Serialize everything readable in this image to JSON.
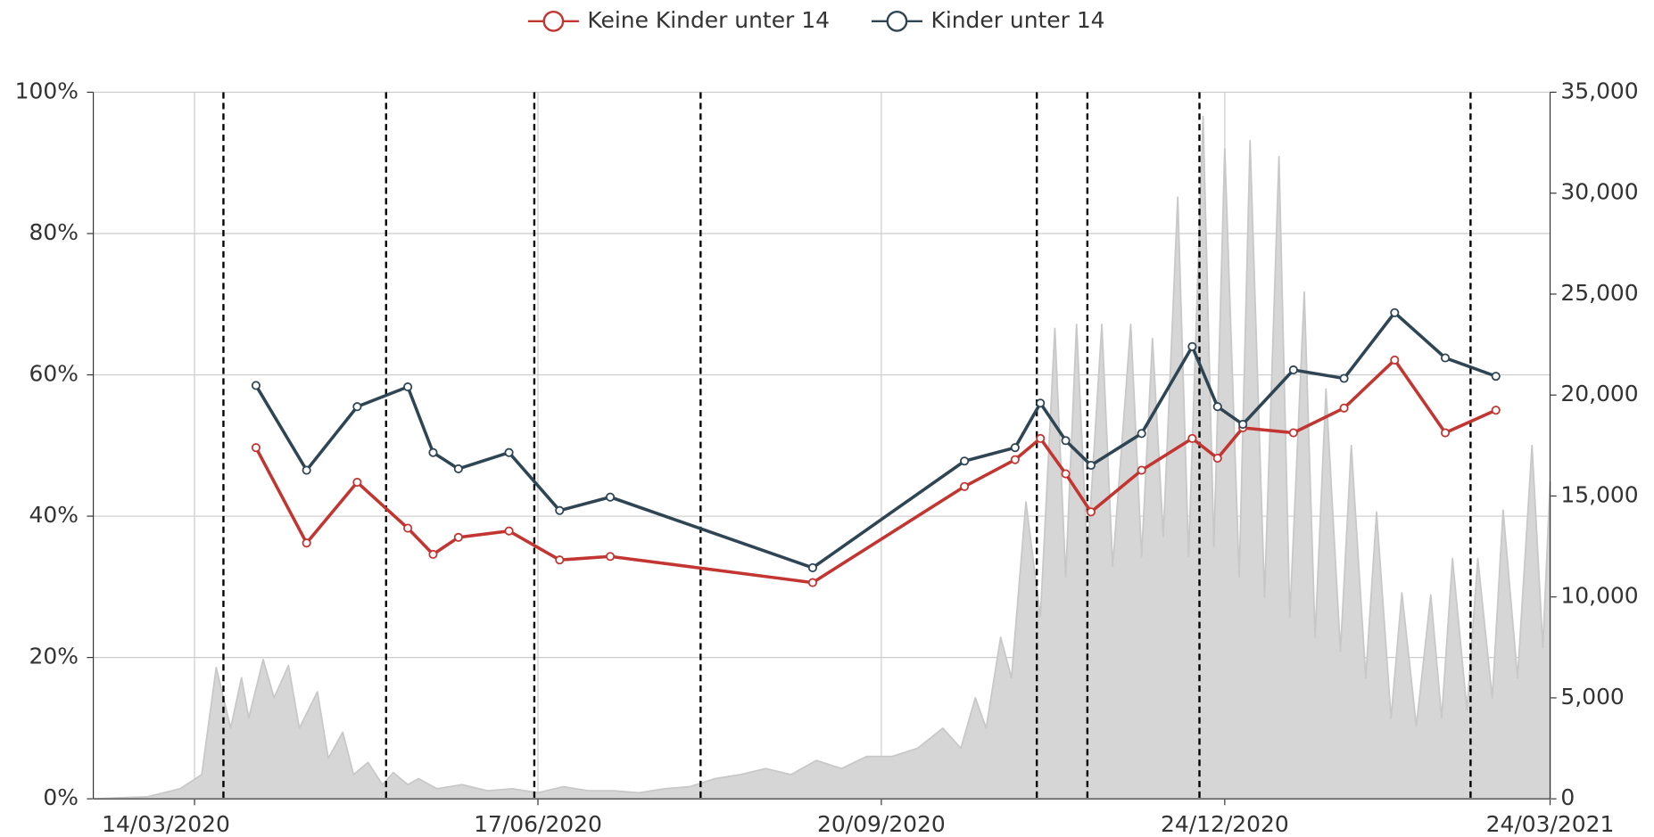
{
  "chart_data": {
    "type": "line",
    "xlim": [
      "2020-02-15",
      "2021-03-24"
    ],
    "xticks": [
      {
        "value": "2020-03-14",
        "label": "14/03/2020"
      },
      {
        "value": "2020-06-17",
        "label": "17/06/2020"
      },
      {
        "value": "2020-09-20",
        "label": "20/09/2020"
      },
      {
        "value": "2020-12-24",
        "label": "24/12/2020"
      },
      {
        "value": "2021-03-24",
        "label": "24/03/2021"
      }
    ],
    "ylim": [
      0,
      100
    ],
    "yticks": [
      {
        "value": 0,
        "label": "0%"
      },
      {
        "value": 20,
        "label": "20%"
      },
      {
        "value": 40,
        "label": "40%"
      },
      {
        "value": 60,
        "label": "60%"
      },
      {
        "value": 80,
        "label": "80%"
      },
      {
        "value": 100,
        "label": "100%"
      }
    ],
    "y2lim": [
      0,
      35000
    ],
    "y2ticks": [
      0,
      {
        "value": 5000,
        "label": "5,000"
      },
      {
        "value": 10000,
        "label": "10,000"
      },
      {
        "value": 15000,
        "label": "15,000"
      },
      {
        "value": 20000,
        "label": "20,000"
      },
      {
        "value": 25000,
        "label": "25,000"
      },
      {
        "value": 30000,
        "label": "30,000"
      },
      {
        "value": 35000,
        "label": "35,000"
      }
    ],
    "grid": true,
    "legend": "top",
    "vlines": [
      "2020-03-22",
      "2020-05-06",
      "2020-06-16",
      "2020-08-01",
      "2020-11-02",
      "2020-11-16",
      "2020-12-17",
      "2021-03-02"
    ],
    "series": [
      {
        "name": "Keine Kinder unter 14",
        "color": "#c23531",
        "x": [
          "2020-03-31",
          "2020-04-14",
          "2020-04-28",
          "2020-05-12",
          "2020-05-19",
          "2020-05-26",
          "2020-06-09",
          "2020-06-23",
          "2020-07-07",
          "2020-09-01",
          "2020-10-13",
          "2020-10-27",
          "2020-11-03",
          "2020-11-10",
          "2020-11-17",
          "2020-12-01",
          "2020-12-15",
          "2020-12-22",
          "2020-12-29",
          "2021-01-12",
          "2021-01-26",
          "2021-02-09",
          "2021-02-23",
          "2021-03-09"
        ],
        "values": [
          49.7,
          36.2,
          44.8,
          38.3,
          34.6,
          37,
          37.9,
          33.8,
          34.3,
          30.6,
          44.2,
          48,
          51,
          46,
          40.6,
          46.5,
          51,
          48.2,
          52.5,
          51.8,
          55.3,
          62.1,
          51.8,
          55
        ]
      },
      {
        "name": "Kinder unter 14",
        "color": "#2f4554",
        "x": [
          "2020-03-31",
          "2020-04-14",
          "2020-04-28",
          "2020-05-12",
          "2020-05-19",
          "2020-05-26",
          "2020-06-09",
          "2020-06-23",
          "2020-07-07",
          "2020-09-01",
          "2020-10-13",
          "2020-10-27",
          "2020-11-03",
          "2020-11-10",
          "2020-11-17",
          "2020-12-01",
          "2020-12-15",
          "2020-12-22",
          "2020-12-29",
          "2021-01-12",
          "2021-01-26",
          "2021-02-09",
          "2021-02-23",
          "2021-03-09"
        ],
        "values": [
          58.5,
          46.5,
          55.5,
          58.3,
          49,
          46.7,
          49,
          40.8,
          42.7,
          32.7,
          47.8,
          49.7,
          56,
          50.7,
          47.2,
          51.7,
          64,
          55.5,
          53,
          60.7,
          59.5,
          68.8,
          62.4,
          59.8
        ]
      },
      {
        "type": "area",
        "axis": "y2",
        "color": "#d6d6d6",
        "x": [
          "2020-02-15",
          "2020-03-01",
          "2020-03-10",
          "2020-03-16",
          "2020-03-20",
          "2020-03-24",
          "2020-03-27",
          "2020-03-29",
          "2020-04-02",
          "2020-04-05",
          "2020-04-09",
          "2020-04-12",
          "2020-04-17",
          "2020-04-20",
          "2020-04-24",
          "2020-04-27",
          "2020-05-01",
          "2020-05-05",
          "2020-05-08",
          "2020-05-12",
          "2020-05-15",
          "2020-05-20",
          "2020-05-27",
          "2020-06-03",
          "2020-06-10",
          "2020-06-17",
          "2020-06-24",
          "2020-07-01",
          "2020-07-08",
          "2020-07-15",
          "2020-07-22",
          "2020-07-29",
          "2020-08-05",
          "2020-08-12",
          "2020-08-19",
          "2020-08-26",
          "2020-09-02",
          "2020-09-09",
          "2020-09-16",
          "2020-09-23",
          "2020-09-30",
          "2020-10-07",
          "2020-10-12",
          "2020-10-16",
          "2020-10-19",
          "2020-10-23",
          "2020-10-26",
          "2020-10-30",
          "2020-11-03",
          "2020-11-07",
          "2020-11-10",
          "2020-11-13",
          "2020-11-16",
          "2020-11-20",
          "2020-11-23",
          "2020-11-28",
          "2020-12-01",
          "2020-12-04",
          "2020-12-07",
          "2020-12-11",
          "2020-12-14",
          "2020-12-18",
          "2020-12-21",
          "2020-12-24",
          "2020-12-28",
          "2020-12-31",
          "2021-01-04",
          "2021-01-08",
          "2021-01-11",
          "2021-01-15",
          "2021-01-18",
          "2021-01-21",
          "2021-01-25",
          "2021-01-28",
          "2021-02-01",
          "2021-02-04",
          "2021-02-08",
          "2021-02-11",
          "2021-02-15",
          "2021-02-19",
          "2021-02-22",
          "2021-02-25",
          "2021-03-01",
          "2021-03-04",
          "2021-03-08",
          "2021-03-11",
          "2021-03-15",
          "2021-03-19",
          "2021-03-22",
          "2021-03-24"
        ],
        "values": [
          0,
          100,
          500,
          1200,
          6500,
          3500,
          6000,
          4000,
          6900,
          5000,
          6600,
          3500,
          5300,
          2000,
          3300,
          1200,
          1800,
          700,
          1300,
          700,
          1000,
          500,
          700,
          400,
          500,
          300,
          600,
          400,
          400,
          300,
          500,
          600,
          1000,
          1200,
          1500,
          1200,
          1900,
          1500,
          2100,
          2100,
          2500,
          3500,
          2500,
          5000,
          3500,
          8000,
          6000,
          14700,
          9000,
          23300,
          11000,
          23500,
          12000,
          23500,
          11500,
          23500,
          12000,
          22800,
          13000,
          29800,
          12000,
          33800,
          12500,
          32200,
          11000,
          32600,
          10000,
          31800,
          9000,
          25100,
          8000,
          20300,
          7300,
          17500,
          6000,
          14200,
          4000,
          10200,
          3600,
          10100,
          4000,
          11900,
          4400,
          11900,
          5000,
          14300,
          6000,
          17500,
          7500,
          15700
        ]
      }
    ]
  }
}
